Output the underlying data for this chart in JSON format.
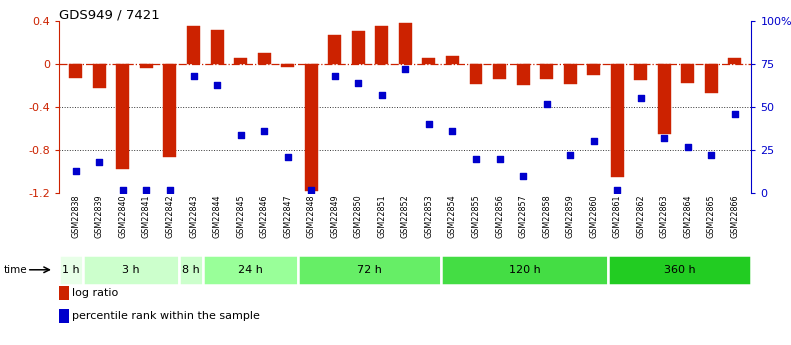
{
  "title": "GDS949 / 7421",
  "samples": [
    "GSM22838",
    "GSM22839",
    "GSM22840",
    "GSM22841",
    "GSM22842",
    "GSM22843",
    "GSM22844",
    "GSM22845",
    "GSM22846",
    "GSM22847",
    "GSM22848",
    "GSM22849",
    "GSM22850",
    "GSM22851",
    "GSM22852",
    "GSM22853",
    "GSM22854",
    "GSM22855",
    "GSM22856",
    "GSM22857",
    "GSM22858",
    "GSM22859",
    "GSM22860",
    "GSM22861",
    "GSM22862",
    "GSM22863",
    "GSM22864",
    "GSM22865",
    "GSM22866"
  ],
  "log_ratio": [
    -0.13,
    -0.22,
    -0.98,
    -0.04,
    -0.86,
    0.35,
    0.31,
    0.05,
    0.1,
    -0.03,
    -1.18,
    0.27,
    0.3,
    0.35,
    0.38,
    0.05,
    0.07,
    -0.19,
    -0.14,
    -0.2,
    -0.14,
    -0.19,
    -0.1,
    -1.05,
    -0.15,
    -0.65,
    -0.18,
    -0.27,
    0.05
  ],
  "percentile": [
    13,
    18,
    2,
    2,
    2,
    68,
    63,
    34,
    36,
    21,
    2,
    68,
    64,
    57,
    72,
    40,
    36,
    20,
    20,
    10,
    52,
    22,
    30,
    2,
    55,
    32,
    27,
    22,
    46
  ],
  "time_groups": [
    {
      "label": "1 h",
      "start": 0,
      "end": 1,
      "color": "#e8ffe8"
    },
    {
      "label": "3 h",
      "start": 1,
      "end": 5,
      "color": "#ccffcc"
    },
    {
      "label": "8 h",
      "start": 5,
      "end": 6,
      "color": "#ccffcc"
    },
    {
      "label": "24 h",
      "start": 6,
      "end": 10,
      "color": "#99ff99"
    },
    {
      "label": "72 h",
      "start": 10,
      "end": 16,
      "color": "#66ee66"
    },
    {
      "label": "120 h",
      "start": 16,
      "end": 23,
      "color": "#44dd44"
    },
    {
      "label": "360 h",
      "start": 23,
      "end": 29,
      "color": "#22cc22"
    }
  ],
  "bar_color": "#cc2200",
  "dot_color": "#0000cc",
  "ylim_left": [
    -1.2,
    0.4
  ],
  "ylim_right": [
    0,
    100
  ],
  "yticks_left": [
    -1.2,
    -0.8,
    -0.4,
    0.0,
    0.4
  ],
  "ytick_labels_left": [
    "-1.2",
    "-0.8",
    "-0.4",
    "0",
    "0.4"
  ],
  "yticks_right": [
    0,
    25,
    50,
    75,
    100
  ],
  "ytick_labels_right": [
    "0",
    "25",
    "50",
    "75",
    "100%"
  ],
  "fig_width": 7.91,
  "fig_height": 3.45,
  "dpi": 100
}
